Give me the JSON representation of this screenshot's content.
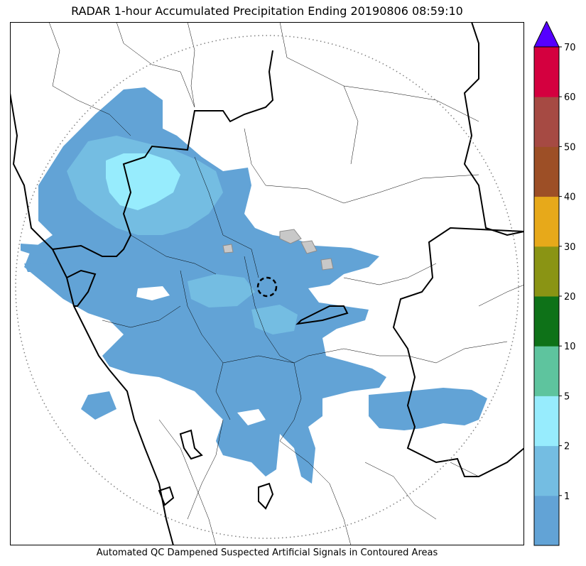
{
  "title": "RADAR 1-hour Accumulated Precipitation Ending 20190806 08:59:10",
  "footer_note": "Automated QC Dampened Suspected Artificial Signals in Contoured Areas",
  "legend": {
    "extend_max": true,
    "extend_color": "#5500ff",
    "bins": [
      {
        "label": "",
        "color": "#62a3d6"
      },
      {
        "label": "1",
        "color": "#74bde2"
      },
      {
        "label": "2",
        "color": "#97ecfd"
      },
      {
        "label": "5",
        "color": "#5ec49e"
      },
      {
        "label": "10",
        "color": "#0e7218"
      },
      {
        "label": "20",
        "color": "#8a9414"
      },
      {
        "label": "30",
        "color": "#e7a91a"
      },
      {
        "label": "40",
        "color": "#9d4f26"
      },
      {
        "label": "50",
        "color": "#a64a43"
      },
      {
        "label": "60",
        "color": "#d4003f"
      },
      {
        "label": "70",
        "color": ""
      }
    ]
  },
  "map_style": {
    "range_ring": "dotted",
    "radar_site_marker": "dashed-circle",
    "state_boundaries": "thick-black",
    "district_boundaries": "thin-black",
    "qc_flagged_areas": "gray-contoured"
  }
}
